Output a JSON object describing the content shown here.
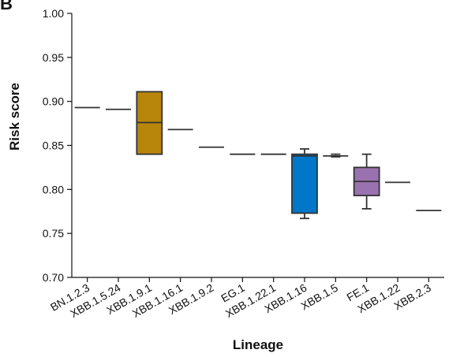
{
  "panel_label": "B",
  "chart_data": {
    "type": "box",
    "title": "",
    "xlabel": "Lineage",
    "ylabel": "Risk score",
    "ylim": [
      0.7,
      1.0
    ],
    "yticks": [
      "0.70",
      "0.75",
      "0.80",
      "0.85",
      "0.90",
      "0.95",
      "1.00"
    ],
    "grid": false,
    "categories": [
      "BN.1.2.3",
      "XBB.1.5.24",
      "XBB.1.9.1",
      "XBB.1.16.1",
      "XBB.1.9.2",
      "EG.1",
      "XBB.1.22.1",
      "XBB.1.16",
      "XBB.1.5",
      "FE.1",
      "XBB.1.22",
      "XBB.2.3"
    ],
    "boxes": [
      {
        "min": 0.893,
        "q1": 0.893,
        "median": 0.893,
        "q3": 0.893,
        "max": 0.893,
        "color": null
      },
      {
        "min": 0.891,
        "q1": 0.891,
        "median": 0.891,
        "q3": 0.891,
        "max": 0.891,
        "color": null
      },
      {
        "min": 0.84,
        "q1": 0.84,
        "median": 0.876,
        "q3": 0.911,
        "max": 0.911,
        "color": "#b8860b"
      },
      {
        "min": 0.868,
        "q1": 0.868,
        "median": 0.868,
        "q3": 0.868,
        "max": 0.868,
        "color": null
      },
      {
        "min": 0.848,
        "q1": 0.848,
        "median": 0.848,
        "q3": 0.848,
        "max": 0.848,
        "color": null
      },
      {
        "min": 0.84,
        "q1": 0.84,
        "median": 0.84,
        "q3": 0.84,
        "max": 0.84,
        "color": null
      },
      {
        "min": 0.84,
        "q1": 0.84,
        "median": 0.84,
        "q3": 0.84,
        "max": 0.84,
        "color": null
      },
      {
        "min": 0.767,
        "q1": 0.773,
        "median": 0.838,
        "q3": 0.84,
        "max": 0.846,
        "color": "#0077c8"
      },
      {
        "min": 0.837,
        "q1": 0.838,
        "median": 0.838,
        "q3": 0.839,
        "max": 0.84,
        "color": null
      },
      {
        "min": 0.778,
        "q1": 0.793,
        "median": 0.809,
        "q3": 0.825,
        "max": 0.84,
        "color": "#9b72b0"
      },
      {
        "min": 0.808,
        "q1": 0.808,
        "median": 0.808,
        "q3": 0.808,
        "max": 0.808,
        "color": null
      },
      {
        "min": 0.776,
        "q1": 0.776,
        "median": 0.776,
        "q3": 0.776,
        "max": 0.776,
        "color": null
      }
    ]
  }
}
